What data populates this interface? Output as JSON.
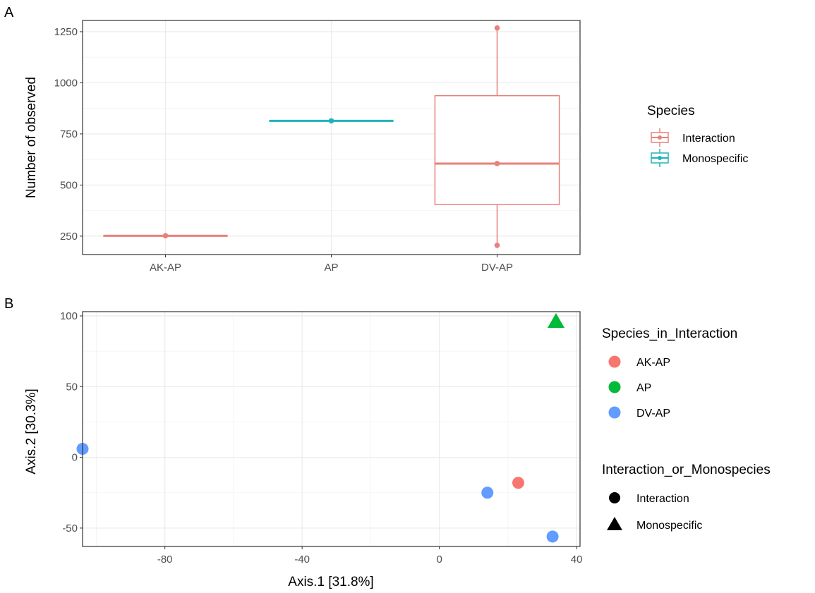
{
  "chart_data": [
    {
      "panel_label": "A",
      "type": "box",
      "xlabel": "",
      "ylabel": "Number of observed",
      "categories": [
        "AK-AP",
        "AP",
        "DV-AP"
      ],
      "ylim": [
        160,
        1305
      ],
      "yticks": [
        250,
        500,
        750,
        1000,
        1250
      ],
      "grid": true,
      "legend": {
        "title": "Species",
        "position": "right",
        "entries": [
          {
            "label": "Interaction",
            "color": "#E7817A"
          },
          {
            "label": "Monospecific",
            "color": "#1EB3BB"
          }
        ]
      },
      "boxes": [
        {
          "category": "AK-AP",
          "group": "Interaction",
          "min": 252,
          "q1": 252,
          "median": 252,
          "q3": 252,
          "max": 252,
          "points": [
            252
          ]
        },
        {
          "category": "AP",
          "group": "Monospecific",
          "min": 814,
          "q1": 814,
          "median": 814,
          "q3": 814,
          "max": 814,
          "points": [
            814
          ]
        },
        {
          "category": "DV-AP",
          "group": "Interaction",
          "min": 205,
          "q1": 405,
          "median": 605,
          "q3": 937,
          "max": 1268,
          "points": [
            205,
            605,
            1268
          ]
        }
      ]
    },
    {
      "panel_label": "B",
      "type": "scatter",
      "xlabel": "Axis.1   [31.8%]",
      "ylabel": "Axis.2   [30.3%]",
      "xlim": [
        -104,
        41
      ],
      "ylim": [
        -63,
        103
      ],
      "xticks": [
        -80,
        -40,
        0,
        40
      ],
      "yticks": [
        -50,
        0,
        50,
        100
      ],
      "grid": true,
      "legends": [
        {
          "title": "Species_in_Interaction",
          "position": "right",
          "entries": [
            {
              "label": "AK-AP",
              "color": "#F8766D"
            },
            {
              "label": "AP",
              "color": "#00BA38"
            },
            {
              "label": "DV-AP",
              "color": "#619CFF"
            }
          ]
        },
        {
          "title": "Interaction_or_Monospecies",
          "position": "right",
          "entries": [
            {
              "label": "Interaction",
              "shape": "circle"
            },
            {
              "label": "Monospecific",
              "shape": "triangle"
            }
          ]
        }
      ],
      "points": [
        {
          "x": -104,
          "y": 6,
          "species": "DV-AP",
          "shape": "circle"
        },
        {
          "x": 14,
          "y": -25,
          "species": "DV-AP",
          "shape": "circle"
        },
        {
          "x": 23,
          "y": -18,
          "species": "AK-AP",
          "shape": "circle"
        },
        {
          "x": 33,
          "y": -56,
          "species": "DV-AP",
          "shape": "circle"
        },
        {
          "x": 34,
          "y": 96,
          "species": "AP",
          "shape": "triangle"
        }
      ]
    }
  ]
}
